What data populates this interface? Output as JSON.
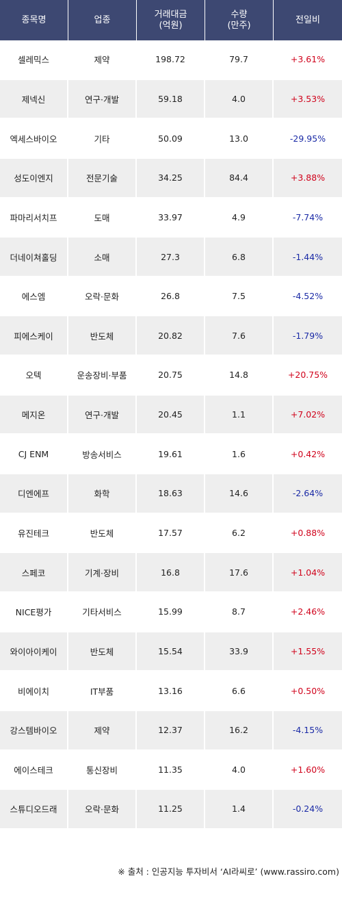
{
  "header": {
    "name": "종목명",
    "sector": "업종",
    "amount": "거래대금\n(억원)",
    "volume": "수량\n(만주)",
    "change": "전일비"
  },
  "rows": [
    {
      "name": "셀레믹스",
      "sector": "제약",
      "amount": "198.72",
      "volume": "79.7",
      "change": "+3.61%",
      "dir": "up"
    },
    {
      "name": "제넥신",
      "sector": "연구·개발",
      "amount": "59.18",
      "volume": "4.0",
      "change": "+3.53%",
      "dir": "up"
    },
    {
      "name": "엑세스바이오",
      "sector": "기타",
      "amount": "50.09",
      "volume": "13.0",
      "change": "-29.95%",
      "dir": "down"
    },
    {
      "name": "성도이엔지",
      "sector": "전문기술",
      "amount": "34.25",
      "volume": "84.4",
      "change": "+3.88%",
      "dir": "up"
    },
    {
      "name": "파마리서치프",
      "sector": "도매",
      "amount": "33.97",
      "volume": "4.9",
      "change": "-7.74%",
      "dir": "down"
    },
    {
      "name": "더네이쳐홀딩",
      "sector": "소매",
      "amount": "27.3",
      "volume": "6.8",
      "change": "-1.44%",
      "dir": "down"
    },
    {
      "name": "에스엠",
      "sector": "오락·문화",
      "amount": "26.8",
      "volume": "7.5",
      "change": "-4.52%",
      "dir": "down"
    },
    {
      "name": "피에스케이",
      "sector": "반도체",
      "amount": "20.82",
      "volume": "7.6",
      "change": "-1.79%",
      "dir": "down"
    },
    {
      "name": "오텍",
      "sector": "운송장비·부품",
      "amount": "20.75",
      "volume": "14.8",
      "change": "+20.75%",
      "dir": "up"
    },
    {
      "name": "메지온",
      "sector": "연구·개발",
      "amount": "20.45",
      "volume": "1.1",
      "change": "+7.02%",
      "dir": "up"
    },
    {
      "name": "CJ ENM",
      "sector": "방송서비스",
      "amount": "19.61",
      "volume": "1.6",
      "change": "+0.42%",
      "dir": "up"
    },
    {
      "name": "디엔에프",
      "sector": "화학",
      "amount": "18.63",
      "volume": "14.6",
      "change": "-2.64%",
      "dir": "down"
    },
    {
      "name": "유진테크",
      "sector": "반도체",
      "amount": "17.57",
      "volume": "6.2",
      "change": "+0.88%",
      "dir": "up"
    },
    {
      "name": "스페코",
      "sector": "기계·장비",
      "amount": "16.8",
      "volume": "17.6",
      "change": "+1.04%",
      "dir": "up"
    },
    {
      "name": "NICE평가",
      "sector": "기타서비스",
      "amount": "15.99",
      "volume": "8.7",
      "change": "+2.46%",
      "dir": "up"
    },
    {
      "name": "와이아이케이",
      "sector": "반도체",
      "amount": "15.54",
      "volume": "33.9",
      "change": "+1.55%",
      "dir": "up"
    },
    {
      "name": "비에이치",
      "sector": "IT부품",
      "amount": "13.16",
      "volume": "6.6",
      "change": "+0.50%",
      "dir": "up"
    },
    {
      "name": "강스템바이오",
      "sector": "제약",
      "amount": "12.37",
      "volume": "16.2",
      "change": "-4.15%",
      "dir": "down"
    },
    {
      "name": "에이스테크",
      "sector": "통신장비",
      "amount": "11.35",
      "volume": "4.0",
      "change": "+1.60%",
      "dir": "up"
    },
    {
      "name": "스튜디오드래",
      "sector": "오락·문화",
      "amount": "11.25",
      "volume": "1.4",
      "change": "-0.24%",
      "dir": "down"
    }
  ],
  "colors": {
    "header_bg": "#3d4872",
    "up": "#d0021b",
    "down": "#1a2aa6"
  },
  "footer": "※ 출처 : 인공지능 투자비서 ‘AI라씨로’ (www.rassiro.com)"
}
